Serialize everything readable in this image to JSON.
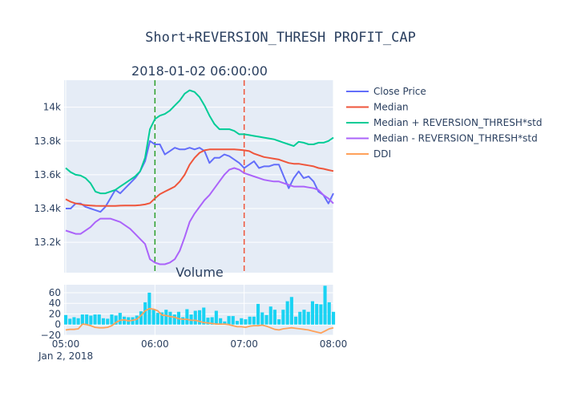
{
  "chart_data": [
    {
      "type": "line",
      "title": "Short+REVERSION_THRESH PROFIT_CAP",
      "subtitle": "2018-01-02 06:00:00",
      "x_range": [
        "05:00",
        "08:00"
      ],
      "y_range": [
        13020,
        14160
      ],
      "y_ticks": [
        13200,
        13400,
        13600,
        13800,
        14000
      ],
      "y_tick_labels": [
        "13.2k",
        "13.4k",
        "13.6k",
        "13.8k",
        "14k"
      ],
      "grid": true,
      "legend_position": "right",
      "vertical_markers": [
        {
          "time": "06:00",
          "color": "#2ca02c"
        },
        {
          "time": "07:00",
          "color": "#EF553B"
        }
      ],
      "series": [
        {
          "name": "Close Price",
          "color": "#636efa",
          "values": [
            13400,
            13400,
            13430,
            13430,
            13410,
            13400,
            13390,
            13380,
            13410,
            13460,
            13510,
            13490,
            13520,
            13550,
            13580,
            13620,
            13680,
            13800,
            13780,
            13780,
            13720,
            13740,
            13760,
            13750,
            13750,
            13760,
            13750,
            13760,
            13740,
            13670,
            13700,
            13700,
            13720,
            13710,
            13690,
            13670,
            13640,
            13660,
            13680,
            13640,
            13650,
            13650,
            13660,
            13660,
            13590,
            13520,
            13580,
            13620,
            13580,
            13590,
            13560,
            13500,
            13480,
            13430,
            13490
          ]
        },
        {
          "name": "Median",
          "color": "#EF553B",
          "values": [
            13455,
            13440,
            13430,
            13425,
            13420,
            13418,
            13416,
            13415,
            13415,
            13415,
            13415,
            13417,
            13418,
            13418,
            13418,
            13420,
            13424,
            13432,
            13460,
            13485,
            13500,
            13515,
            13530,
            13560,
            13600,
            13660,
            13700,
            13730,
            13745,
            13750,
            13750,
            13750,
            13750,
            13750,
            13750,
            13748,
            13745,
            13740,
            13725,
            13715,
            13705,
            13700,
            13695,
            13690,
            13680,
            13670,
            13665,
            13665,
            13660,
            13655,
            13650,
            13640,
            13635,
            13628,
            13622
          ]
        },
        {
          "name": "Median + REVERSION_THRESH*std",
          "color": "#00cc96",
          "values": [
            13640,
            13615,
            13600,
            13595,
            13580,
            13550,
            13500,
            13490,
            13490,
            13500,
            13510,
            13530,
            13550,
            13570,
            13590,
            13620,
            13700,
            13870,
            13930,
            13950,
            13960,
            13980,
            14010,
            14040,
            14080,
            14100,
            14090,
            14060,
            14010,
            13950,
            13900,
            13870,
            13870,
            13870,
            13860,
            13840,
            13840,
            13835,
            13830,
            13825,
            13820,
            13815,
            13810,
            13800,
            13790,
            13780,
            13770,
            13795,
            13790,
            13780,
            13780,
            13790,
            13790,
            13800,
            13820
          ]
        },
        {
          "name": "Median - REVERSION_THRESH*std",
          "color": "#ab63fa",
          "values": [
            13270,
            13260,
            13250,
            13250,
            13270,
            13290,
            13320,
            13340,
            13340,
            13340,
            13330,
            13320,
            13300,
            13280,
            13250,
            13220,
            13190,
            13100,
            13080,
            13070,
            13070,
            13080,
            13100,
            13150,
            13230,
            13320,
            13370,
            13410,
            13450,
            13480,
            13520,
            13560,
            13600,
            13630,
            13640,
            13630,
            13610,
            13600,
            13590,
            13580,
            13570,
            13565,
            13560,
            13560,
            13550,
            13540,
            13530,
            13530,
            13530,
            13525,
            13520,
            13510,
            13480,
            13460,
            13430
          ]
        },
        {
          "name": "DDI",
          "color": "#FFA15A",
          "values": []
        }
      ]
    },
    {
      "type": "bar",
      "title": "Volume",
      "x_range": [
        "05:00",
        "08:00"
      ],
      "y_range": [
        -20,
        75
      ],
      "y_ticks": [
        -20,
        0,
        20,
        40,
        60
      ],
      "y_tick_labels": [
        "−20",
        "0",
        "20",
        "40",
        "60"
      ],
      "x_ticks": [
        "05:00",
        "06:00",
        "07:00",
        "08:00"
      ],
      "x_date_label": "Jan 2, 2018",
      "bar_color": "#19d3f3",
      "values": [
        18,
        11,
        14,
        12,
        19,
        19,
        17,
        19,
        19,
        12,
        11,
        19,
        17,
        22,
        15,
        14,
        14,
        17,
        25,
        42,
        60,
        28,
        22,
        23,
        28,
        24,
        19,
        24,
        14,
        29,
        19,
        26,
        27,
        32,
        13,
        14,
        26,
        12,
        6,
        16,
        16,
        7,
        12,
        10,
        15,
        15,
        39,
        23,
        18,
        34,
        28,
        10,
        28,
        44,
        52,
        15,
        24,
        28,
        24,
        44,
        39,
        38,
        73,
        42,
        24
      ],
      "ddi_values": [
        -10,
        -9,
        -9,
        -8,
        1,
        0,
        -2,
        -5,
        -6,
        -6,
        -5,
        -2,
        4,
        8,
        9,
        7,
        8,
        10,
        17,
        26,
        30,
        29,
        26,
        18,
        17,
        15,
        14,
        11,
        10,
        10,
        8,
        8,
        6,
        4,
        3,
        2,
        1,
        1,
        1,
        0,
        -2,
        -4,
        -4,
        -5,
        -3,
        -2,
        -2,
        -1,
        -3,
        -6,
        -9,
        -10,
        -8,
        -7,
        -6,
        -7,
        -8,
        -9,
        -10,
        -12,
        -14,
        -16,
        -12,
        -8,
        -6
      ]
    }
  ]
}
